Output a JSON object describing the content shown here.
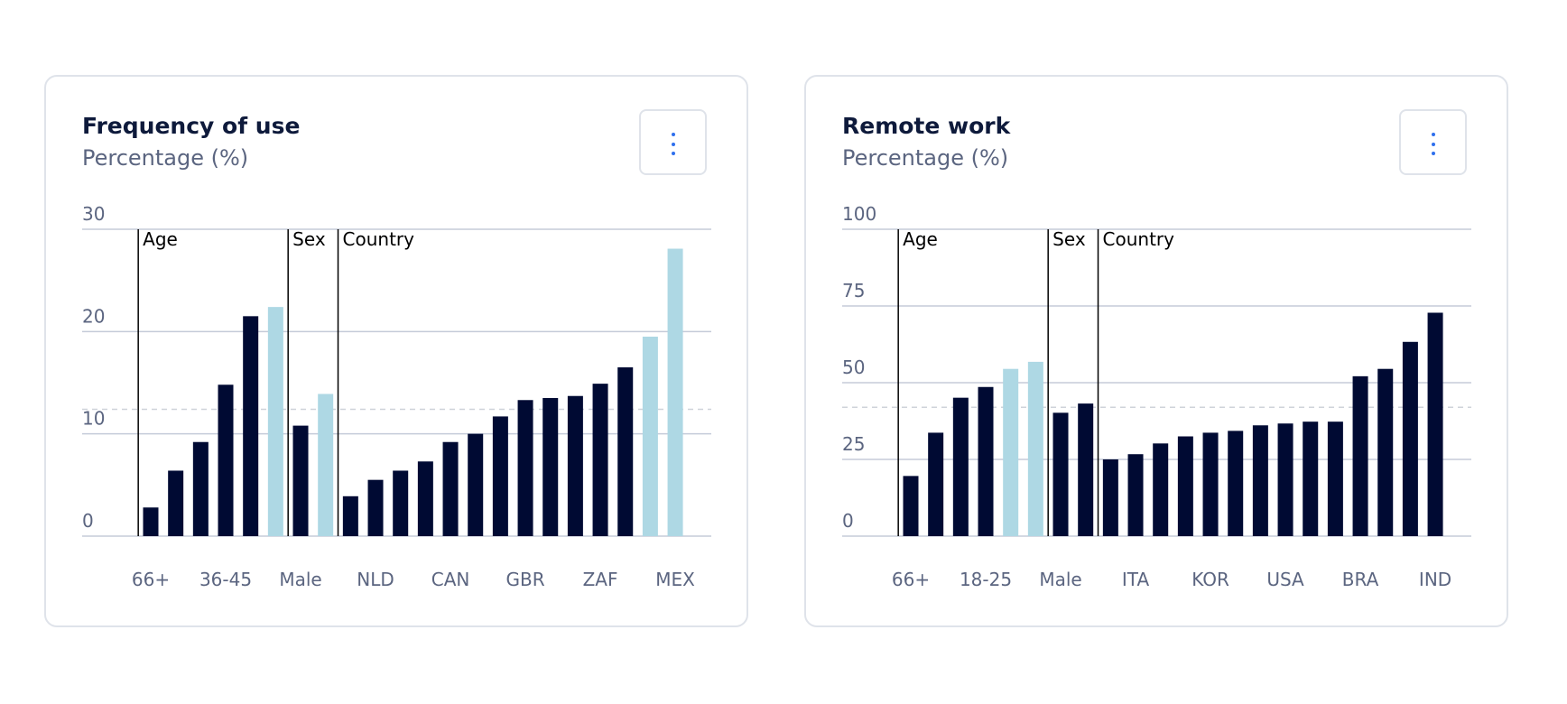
{
  "colors": {
    "primary": "#000a33",
    "highlight": "#aed8e4",
    "grid": "#c5cbd9",
    "average": "#cfd3da",
    "axis_text": "#5b6580"
  },
  "chart_data": [
    {
      "type": "bar",
      "title": "Frequency of use",
      "subtitle": "Percentage (%)",
      "ylim": [
        0,
        30
      ],
      "yticks": [
        "0",
        "10",
        "20",
        "30"
      ],
      "ytick_values": [
        0,
        10,
        20,
        30
      ],
      "average_line": 12.4,
      "groups": [
        {
          "name": "Age",
          "start": 0
        },
        {
          "name": "Sex",
          "start": 6
        },
        {
          "name": "Country",
          "start": 8
        }
      ],
      "labels": [
        "66+",
        "",
        "",
        "36-45",
        "",
        "",
        "Male",
        "",
        "",
        "NLD",
        "",
        "",
        "CAN",
        "",
        "",
        "GBR",
        "",
        "",
        "ZAF",
        "",
        "",
        "MEX"
      ],
      "values": [
        2.8,
        6.4,
        9.2,
        14.8,
        21.5,
        22.4,
        10.8,
        13.9,
        3.9,
        5.5,
        6.4,
        7.3,
        9.2,
        10.0,
        11.7,
        13.3,
        13.5,
        13.7,
        14.9,
        16.5,
        19.5,
        28.1
      ],
      "highlighted": [
        false,
        false,
        false,
        false,
        false,
        true,
        false,
        true,
        false,
        false,
        false,
        false,
        false,
        false,
        false,
        false,
        false,
        false,
        false,
        false,
        true,
        true
      ]
    },
    {
      "type": "bar",
      "title": "Remote work",
      "subtitle": "Percentage (%)",
      "ylim": [
        0,
        100
      ],
      "yticks": [
        "0",
        "25",
        "50",
        "75",
        "100"
      ],
      "ytick_values": [
        0,
        25,
        50,
        75,
        100
      ],
      "average_line": 42,
      "groups": [
        {
          "name": "Age",
          "start": 0
        },
        {
          "name": "Sex",
          "start": 6
        },
        {
          "name": "Country",
          "start": 8
        }
      ],
      "labels": [
        "66+",
        "",
        "",
        "18-25",
        "",
        "",
        "Male",
        "",
        "",
        "ITA",
        "",
        "",
        "KOR",
        "",
        "",
        "USA",
        "",
        "",
        "BRA",
        "",
        "",
        "IND"
      ],
      "values": [
        19.6,
        33.7,
        45.1,
        48.6,
        54.5,
        56.8,
        40.2,
        43.2,
        25.0,
        26.7,
        30.2,
        32.5,
        33.7,
        34.3,
        36.1,
        36.7,
        37.3,
        37.3,
        52.1,
        54.5,
        63.3,
        72.8
      ],
      "highlighted": [
        false,
        false,
        false,
        false,
        true,
        true,
        false,
        false,
        false,
        false,
        false,
        false,
        false,
        false,
        false,
        false,
        false,
        false,
        false,
        false,
        false,
        false
      ]
    }
  ]
}
